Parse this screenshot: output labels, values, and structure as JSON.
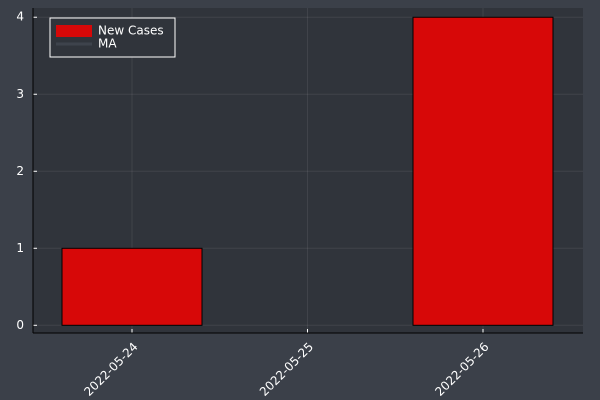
{
  "chart_data": {
    "type": "bar",
    "categories": [
      "2022-05-24",
      "2022-05-25",
      "2022-05-26"
    ],
    "series": [
      {
        "name": "New Cases",
        "color": "#d70808",
        "values": [
          1,
          0,
          4
        ]
      },
      {
        "name": "MA",
        "color": "#3e434c",
        "values": [
          null,
          null,
          null
        ]
      }
    ],
    "ylim": [
      -0.1,
      4.12
    ],
    "yticks": [
      0,
      1,
      2,
      3,
      4
    ],
    "grid": true,
    "legend": "top-left"
  }
}
